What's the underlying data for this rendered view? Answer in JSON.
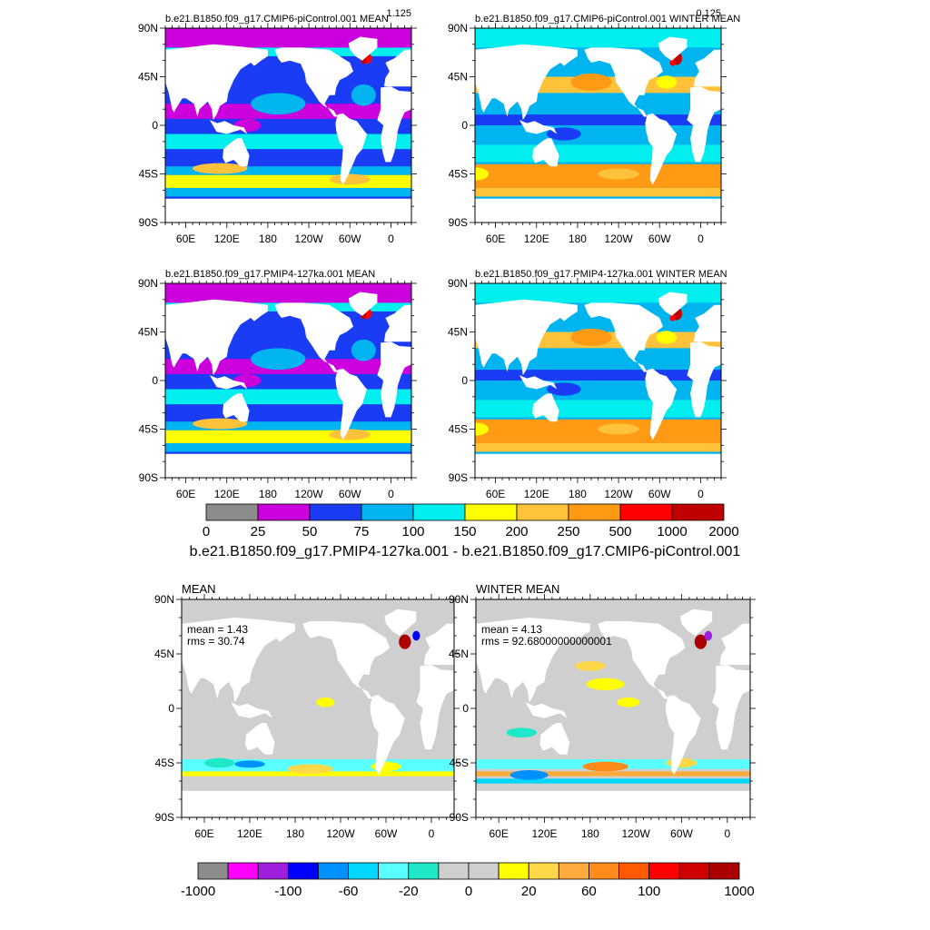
{
  "chart_data": {
    "type": "heatmap",
    "suptitles": {
      "row1_left_subtitle": "1.125",
      "row1_right_subtitle": "0.125"
    },
    "panels": [
      {
        "id": "p1",
        "title": "b.e21.B1850.f09_g17.CMIP6-piControl.001 MEAN",
        "field": "mean",
        "colorbar": "upper"
      },
      {
        "id": "p2",
        "title": "b.e21.B1850.f09_g17.CMIP6-piControl.001 WINTER MEAN",
        "field": "winter",
        "colorbar": "upper"
      },
      {
        "id": "p3",
        "title": "b.e21.B1850.f09_g17.PMIP4-127ka.001 MEAN",
        "field": "mean",
        "colorbar": "upper"
      },
      {
        "id": "p4",
        "title": "b.e21.B1850.f09_g17.PMIP4-127ka.001 WINTER MEAN",
        "field": "winter",
        "colorbar": "upper"
      },
      {
        "id": "p5",
        "title": "MEAN",
        "field": "diff_mean",
        "colorbar": "lower",
        "stats": [
          "mean = 1.43",
          "rms = 30.74"
        ]
      },
      {
        "id": "p6",
        "title": "WINTER MEAN",
        "field": "diff_winter",
        "colorbar": "lower",
        "stats": [
          "mean = 4.13",
          "rms = 92.68000000000001"
        ]
      }
    ],
    "x_ticks": [
      "60E",
      "120E",
      "180",
      "120W",
      "60W",
      "0"
    ],
    "y_ticks": [
      "90N",
      "45N",
      "0",
      "45S",
      "90S"
    ],
    "xlim_deg_east": [
      30,
      390
    ],
    "ylim_deg": [
      -90,
      90
    ],
    "upper_colorbar": {
      "labels": [
        "0",
        "25",
        "50",
        "75",
        "100",
        "150",
        "200",
        "250",
        "500",
        "1000",
        "2000"
      ],
      "colors": [
        "#8c8c8c",
        "#cc00dd",
        "#1a3cf5",
        "#00b4f0",
        "#00eeee",
        "#ffff00",
        "#ffc23a",
        "#ff9a14",
        "#ff0000",
        "#c00000"
      ]
    },
    "diff_title": "b.e21.B1850.f09_g17.PMIP4-127ka.001 - b.e21.B1850.f09_g17.CMIP6-piControl.001",
    "lower_colorbar": {
      "labels": [
        "-1000",
        "-100",
        "-60",
        "-20",
        "0",
        "20",
        "60",
        "100",
        "1000"
      ],
      "colors": [
        "#8c8c8c",
        "#ff00ff",
        "#9f1fe0",
        "#0000ff",
        "#0091ff",
        "#00d8ff",
        "#5affff",
        "#1ee8c8",
        "#cfcfcf",
        "#cfcfcf",
        "#ffff00",
        "#ffd84a",
        "#ffaa3c",
        "#ff8c1a",
        "#ff5a00",
        "#ff0000",
        "#d00000",
        "#aa0000"
      ]
    }
  }
}
